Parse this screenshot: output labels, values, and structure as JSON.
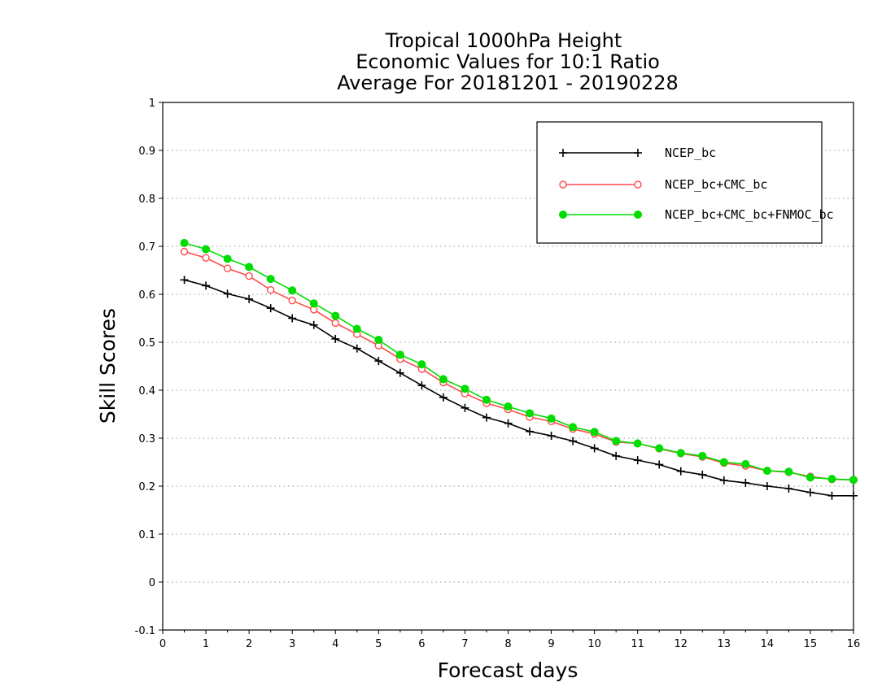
{
  "title_lines": [
    "Tropical 1000hPa Height",
    "Economic Values for 10:1 Ratio",
    "Average For 20181201 - 20190228"
  ],
  "chart_data": {
    "type": "line",
    "title": "Tropical 1000hPa Height\nEconomic Values for 10:1 Ratio\nAverage For 20181201 - 20190228",
    "xlabel": "Forecast days",
    "ylabel": "Skill Scores",
    "xlim": [
      0,
      16
    ],
    "ylim": [
      -0.1,
      1
    ],
    "x_ticks": [
      0,
      1,
      2,
      3,
      4,
      5,
      6,
      7,
      8,
      9,
      10,
      11,
      12,
      13,
      14,
      15,
      16
    ],
    "y_ticks": [
      -0.1,
      0,
      0.1,
      0.2,
      0.3,
      0.4,
      0.5,
      0.6,
      0.7,
      0.8,
      0.9,
      1
    ],
    "y_tick_labels": [
      "-0.1",
      "0",
      "0.1",
      "0.2",
      "0.3",
      "0.4",
      "0.5",
      "0.6",
      "0.7",
      "0.8",
      "0.9",
      "1"
    ],
    "grid": "horizontal dotted",
    "legend_position": "top-right",
    "x": [
      0.5,
      1,
      1.5,
      2,
      2.5,
      3,
      3.5,
      4,
      4.5,
      5,
      5.5,
      6,
      6.5,
      7,
      7.5,
      8,
      8.5,
      9,
      9.5,
      10,
      10.5,
      11,
      11.5,
      12,
      12.5,
      13,
      13.5,
      14,
      14.5,
      15,
      15.5,
      16
    ],
    "series": [
      {
        "name": "NCEP_bc",
        "color": "#000000",
        "marker": "plus",
        "values": [
          0.63,
          0.618,
          0.601,
          0.59,
          0.571,
          0.55,
          0.536,
          0.507,
          0.487,
          0.461,
          0.436,
          0.41,
          0.385,
          0.363,
          0.343,
          0.331,
          0.314,
          0.305,
          0.294,
          0.279,
          0.263,
          0.254,
          0.245,
          0.231,
          0.224,
          0.212,
          0.207,
          0.2,
          0.195,
          0.187,
          0.18,
          0.18
        ]
      },
      {
        "name": "NCEP_bc+CMC_bc",
        "color": "#ff4a4a",
        "marker": "open-circle",
        "values": [
          0.689,
          0.676,
          0.654,
          0.638,
          0.609,
          0.587,
          0.568,
          0.54,
          0.517,
          0.493,
          0.465,
          0.444,
          0.416,
          0.393,
          0.373,
          0.36,
          0.344,
          0.335,
          0.319,
          0.309,
          0.292,
          0.289,
          0.278,
          0.268,
          0.261,
          0.248,
          0.242,
          0.232,
          0.229,
          0.22,
          0.214,
          0.213
        ]
      },
      {
        "name": "NCEP_bc+CMC_bc+FNMOC_bc",
        "color": "#00dd00",
        "marker": "filled-circle",
        "values": [
          0.707,
          0.694,
          0.674,
          0.657,
          0.632,
          0.608,
          0.581,
          0.555,
          0.528,
          0.505,
          0.474,
          0.454,
          0.423,
          0.403,
          0.38,
          0.366,
          0.352,
          0.341,
          0.323,
          0.313,
          0.294,
          0.289,
          0.279,
          0.269,
          0.263,
          0.25,
          0.246,
          0.232,
          0.23,
          0.218,
          0.215,
          0.213
        ]
      }
    ]
  }
}
